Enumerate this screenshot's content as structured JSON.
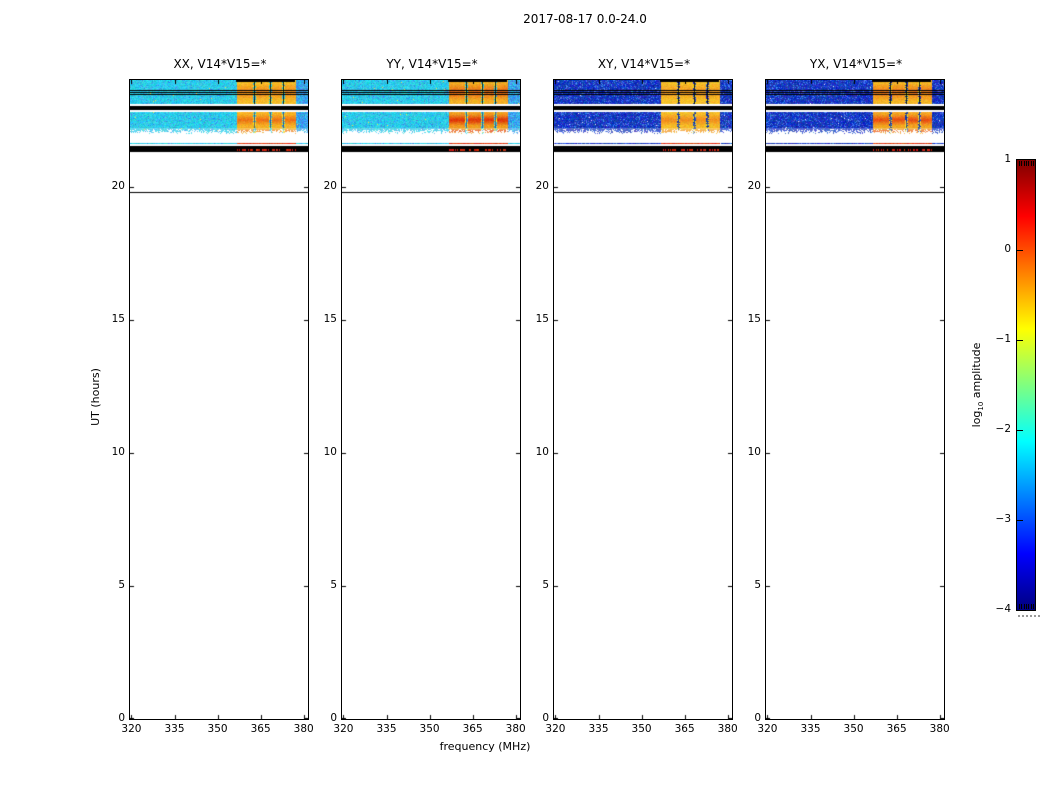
{
  "figure": {
    "title": "2017-08-17 0.0-24.0",
    "background_color": "#ffffff"
  },
  "chart_data": {
    "type": "heatmap",
    "title": "2017-08-17 0.0-24.0",
    "xlabel": "frequency (MHz)",
    "ylabel": "UT (hours)",
    "x_axis": {
      "range": [
        319.5,
        381.5
      ],
      "ticks": [
        320,
        335,
        350,
        365,
        380
      ]
    },
    "y_axis": {
      "range": [
        0,
        24
      ],
      "ticks": [
        0,
        5,
        10,
        15,
        20
      ]
    },
    "panels": [
      {
        "title": "XX, V14*V15=*",
        "background_palette": "cyan",
        "block_center_color": "#ee7014"
      },
      {
        "title": "YY, V14*V15=*",
        "background_palette": "cyan",
        "block_center_color": "#dd3008"
      },
      {
        "title": "XY, V14*V15=*",
        "background_palette": "darkblue",
        "block_center_color": "#f08c1e"
      },
      {
        "title": "YX, V14*V15=*",
        "background_palette": "darkblue",
        "block_center_color": "#e84c10"
      }
    ],
    "palettes": {
      "cyan": {
        "base": "#2dcde8",
        "alt": "#3c96eb",
        "speck": "#f5e146"
      },
      "darkblue": {
        "base": "#1637be",
        "alt": "#4678eb",
        "speck": "#ebf0fa"
      }
    },
    "rfi_blocks_mhz": [
      [
        356.5,
        362.3
      ],
      [
        363.2,
        367.9
      ],
      [
        368.7,
        372.4
      ],
      [
        373.2,
        377.0
      ]
    ],
    "observed_slabs_ut": [
      {
        "ut": [
          23.1,
          24.0
        ],
        "kind": "noise",
        "blocks": true,
        "top_black_segment": true,
        "block_strength": "mild",
        "separators": "black"
      },
      {
        "ut": [
          22.87,
          23.02
        ],
        "kind": "black"
      },
      {
        "ut": [
          22.18,
          22.78
        ],
        "kind": "noise",
        "blocks": true,
        "block_strength": "strong",
        "separators": "dark"
      },
      {
        "ut": [
          21.97,
          22.18
        ],
        "kind": "noise-fade",
        "blocks": true,
        "block_strength": "strong"
      },
      {
        "ut": [
          21.58,
          21.64
        ],
        "kind": "line-color"
      },
      {
        "ut": [
          21.3,
          21.52
        ],
        "kind": "black",
        "red_dashes": true
      },
      {
        "ut": [
          19.75,
          19.79
        ],
        "kind": "line-black"
      }
    ],
    "overlay_black_lines_ut": [
      23.64,
      23.55,
      23.46
    ],
    "colorbar": {
      "label_prefix": "log",
      "label_sub": "10",
      "label_suffix": " amplitude",
      "range": [
        -4,
        1
      ],
      "ticks": [
        {
          "label": "1",
          "value": 1
        },
        {
          "label": "0",
          "value": 0
        },
        {
          "label": "−1",
          "value": -1
        },
        {
          "label": "−2",
          "value": -2
        },
        {
          "label": "−3",
          "value": -3
        },
        {
          "label": "−4",
          "value": -4
        }
      ],
      "colormap": "jet",
      "gradient_stops": [
        {
          "pos": 0.0,
          "color": "#00007f"
        },
        {
          "pos": 0.125,
          "color": "#0000ff"
        },
        {
          "pos": 0.375,
          "color": "#00ffff"
        },
        {
          "pos": 0.625,
          "color": "#ffff00"
        },
        {
          "pos": 0.875,
          "color": "#ff0000"
        },
        {
          "pos": 1.0,
          "color": "#7f0000"
        }
      ]
    }
  }
}
